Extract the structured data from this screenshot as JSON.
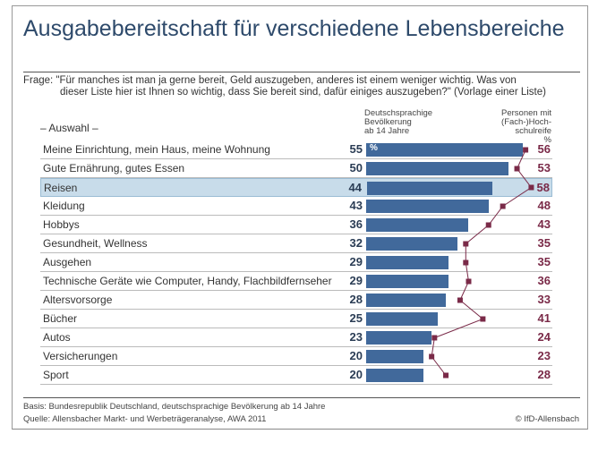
{
  "chart_data": {
    "type": "bar",
    "title": "Ausgabebereitschaft für verschiedene Lebensbereiche",
    "question": [
      "Frage: \"Für manches ist man ja gerne bereit, Geld auszugeben, anderes ist einem weniger wichtig. Was von",
      "dieser Liste hier ist Ihnen so wichtig, dass Sie bereit sind, dafür einiges auszugeben?\" (Vorlage einer Liste)"
    ],
    "category_header": "– Auswahl –",
    "unit": "%",
    "categories": [
      "Meine Einrichtung, mein Haus, meine Wohnung",
      "Gute Ernährung, gutes Essen",
      "Reisen",
      "Kleidung",
      "Hobbys",
      "Gesundheit, Wellness",
      "Ausgehen",
      "Technische Geräte wie Computer, Handy, Flachbildfernseher",
      "Altersvorsorge",
      "Bücher",
      "Autos",
      "Versicherungen",
      "Sport"
    ],
    "highlighted_category": "Reisen",
    "series": [
      {
        "name": "Deutschsprachige Bevölkerung ab 14 Jahre",
        "name_lines": [
          "Deutschsprachige",
          "Bevölkerung",
          "ab 14 Jahre"
        ],
        "type": "bar",
        "color": "#41699b",
        "values": [
          55,
          50,
          44,
          43,
          36,
          32,
          29,
          29,
          28,
          25,
          23,
          20,
          20
        ]
      },
      {
        "name": "Personen mit (Fach-)Hochschulreife",
        "name_lines": [
          "Personen mit",
          "(Fach-)Hoch-",
          "schulreife",
          "%"
        ],
        "type": "line",
        "color": "#7a2a48",
        "values": [
          56,
          53,
          58,
          48,
          43,
          35,
          35,
          36,
          33,
          41,
          24,
          23,
          28
        ]
      }
    ],
    "xlim": [
      0,
      60
    ],
    "footer": {
      "basis": "Basis: Bundesrepublik Deutschland, deutschsprachige Bevölkerung ab 14 Jahre",
      "source": "Quelle: Allensbacher Markt- und Werbeträgeranalyse, AWA 2011",
      "copyright": "© IfD-Allensbach"
    }
  }
}
